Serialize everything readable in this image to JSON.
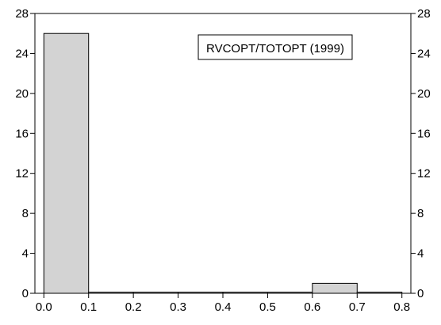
{
  "chart_data": {
    "type": "bar",
    "bins": [
      {
        "x0": 0.0,
        "x1": 0.1,
        "value": 26
      },
      {
        "x0": 0.1,
        "x1": 0.2,
        "value": 0
      },
      {
        "x0": 0.2,
        "x1": 0.3,
        "value": 0
      },
      {
        "x0": 0.3,
        "x1": 0.4,
        "value": 0
      },
      {
        "x0": 0.4,
        "x1": 0.5,
        "value": 0
      },
      {
        "x0": 0.5,
        "x1": 0.6,
        "value": 0
      },
      {
        "x0": 0.6,
        "x1": 0.7,
        "value": 1
      },
      {
        "x0": 0.7,
        "x1": 0.8,
        "value": 0
      }
    ],
    "xlim": [
      -0.02,
      0.82
    ],
    "ylim": [
      0,
      28
    ],
    "x_ticks": [
      "0.0",
      "0.1",
      "0.2",
      "0.3",
      "0.4",
      "0.5",
      "0.6",
      "0.7",
      "0.8"
    ],
    "y_ticks": [
      "0",
      "4",
      "8",
      "12",
      "16",
      "20",
      "24",
      "28"
    ],
    "legend": {
      "label": "RVCOPT/TOTOPT (1999)",
      "position": "top-center"
    },
    "grid": false,
    "colors": {
      "bar_fill": "#d3d3d3",
      "bar_stroke": "#000000"
    }
  }
}
